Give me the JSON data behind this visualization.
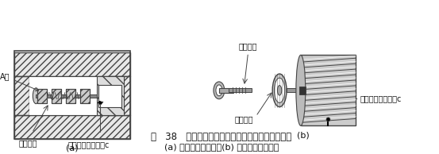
{
  "fig_width": 5.53,
  "fig_height": 1.94,
  "dpi": 100,
  "bg_color": "#ffffff",
  "caption_line1": "图   38   主阀芊上有毛刺及污物阻塞阻尼小孔示意图",
  "caption_line2": "(a) 主阀芊卡死位置；(b) 污物阻塞阻尼小孔",
  "label_a": "(a)",
  "label_b": "(b)",
  "text_A_mian": "A面",
  "text_maoci": "毛刺卡住",
  "text_wuhua_a": "污物阻塞阻尼小孔c",
  "text_gouca": "拉有沟槽",
  "text_nian": "粘有污物",
  "text_wuhua_b": "污物阻塞阻尼小孔c",
  "line_color": "#444444",
  "text_color": "#111111",
  "hatch_color": "#777777",
  "font_size_caption": 8.5,
  "font_size_label": 8,
  "font_size_annot": 7.0
}
